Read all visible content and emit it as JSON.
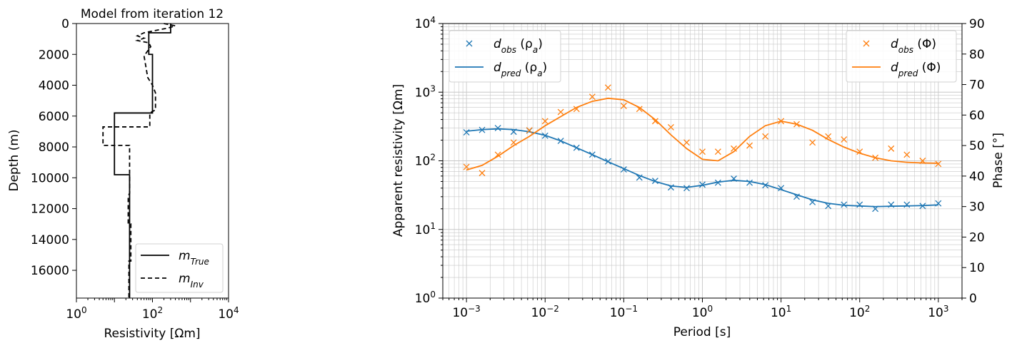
{
  "colors": {
    "phase": "#ff7f0e",
    "rho": "#1f77b4",
    "model": "#000000",
    "grid": "#c8c8c8"
  },
  "chart_data": [
    {
      "type": "line",
      "title": "Model from iteration 12",
      "xlabel": "Resistivity [Ωm]",
      "ylabel": "Depth (m)",
      "xscale": "log",
      "xlim": [
        1,
        10000
      ],
      "ylim": [
        17800,
        0
      ],
      "y_inverted": true,
      "xticks": [
        {
          "v": 1,
          "b": "10",
          "e": "0"
        },
        {
          "v": 100,
          "b": "10",
          "e": "2"
        },
        {
          "v": 10000,
          "b": "10",
          "e": "4"
        }
      ],
      "yticks": [
        "0",
        "2000",
        "4000",
        "6000",
        "8000",
        "10000",
        "12000",
        "14000",
        "16000"
      ],
      "legend_position": "lower-right",
      "series": [
        {
          "name": "m_True",
          "label_base": "m",
          "label_sub": "True",
          "style": "solid",
          "points": [
            [
              300,
              0
            ],
            [
              300,
              600
            ],
            [
              80,
              600
            ],
            [
              80,
              2000
            ],
            [
              100,
              2000
            ],
            [
              100,
              5800
            ],
            [
              10,
              5800
            ],
            [
              10,
              9800
            ],
            [
              25,
              9800
            ],
            [
              25,
              17800
            ]
          ]
        },
        {
          "name": "m_Inv",
          "label_base": "m",
          "label_sub": "Inv",
          "style": "dashed",
          "points": [
            [
              200,
              0
            ],
            [
              400,
              150
            ],
            [
              250,
              300
            ],
            [
              120,
              450
            ],
            [
              60,
              600
            ],
            [
              40,
              800
            ],
            [
              60,
              950
            ],
            [
              40,
              1100
            ],
            [
              80,
              1250
            ],
            [
              90,
              1500
            ],
            [
              60,
              2100
            ],
            [
              75,
              3500
            ],
            [
              100,
              4000
            ],
            [
              120,
              4500
            ],
            [
              120,
              5600
            ],
            [
              85,
              5800
            ],
            [
              85,
              6700
            ],
            [
              5,
              6700
            ],
            [
              5,
              7900
            ],
            [
              25,
              7900
            ],
            [
              25,
              11000
            ],
            [
              23,
              11200
            ],
            [
              23,
              13000
            ],
            [
              27,
              13000
            ],
            [
              27,
              15400
            ],
            [
              24,
              15400
            ],
            [
              24,
              17800
            ]
          ]
        }
      ]
    },
    {
      "type": "line",
      "xlabel": "Period [s]",
      "ylabel": "Apparent resistivity [Ωm]",
      "y2label": "Phase [°]",
      "xscale": "log",
      "yscale": "log",
      "xlim": [
        0.0005,
        2000
      ],
      "ylim": [
        1,
        10000
      ],
      "y2lim": [
        0,
        90
      ],
      "grid": true,
      "xticks": [
        {
          "v": 0.001,
          "b": "10",
          "e": "−3"
        },
        {
          "v": 0.01,
          "b": "10",
          "e": "−2"
        },
        {
          "v": 0.1,
          "b": "10",
          "e": "−1"
        },
        {
          "v": 1,
          "b": "10",
          "e": "0"
        },
        {
          "v": 10,
          "b": "10",
          "e": "1"
        },
        {
          "v": 100,
          "b": "10",
          "e": "2"
        },
        {
          "v": 1000,
          "b": "10",
          "e": "3"
        }
      ],
      "yticks": [
        {
          "v": 1,
          "b": "10",
          "e": "0"
        },
        {
          "v": 10,
          "b": "10",
          "e": "1"
        },
        {
          "v": 100,
          "b": "10",
          "e": "2"
        },
        {
          "v": 1000,
          "b": "10",
          "e": "3"
        },
        {
          "v": 10000,
          "b": "10",
          "e": "4"
        }
      ],
      "y2ticks": [
        "0",
        "10",
        "20",
        "30",
        "40",
        "50",
        "60",
        "70",
        "80",
        "90"
      ],
      "x": [
        0.001,
        0.00158,
        0.00251,
        0.00398,
        0.00631,
        0.01,
        0.0158,
        0.0251,
        0.0398,
        0.0631,
        0.1,
        0.158,
        0.251,
        0.398,
        0.631,
        1,
        1.58,
        2.51,
        3.98,
        6.31,
        10,
        15.8,
        25.1,
        39.8,
        63.1,
        100,
        158,
        251,
        398,
        631,
        1000
      ],
      "legend_left": {
        "position": "upper-left",
        "entries": [
          {
            "name": "d_obs (ρ_a)",
            "base": "d",
            "sub": "obs",
            "suffix": " (ρ",
            "suffix_sub": "a",
            "suffix_end": ")",
            "marker": "x"
          },
          {
            "name": "d_pred (ρ_a)",
            "base": "d",
            "sub": "pred",
            "suffix": " (ρ",
            "suffix_sub": "a",
            "suffix_end": ")",
            "marker": "line"
          }
        ]
      },
      "legend_right": {
        "position": "upper-right",
        "entries": [
          {
            "name": "d_obs (Φ)",
            "base": "d",
            "sub": "obs",
            "suffix": " (Φ)",
            "suffix_sub": "",
            "suffix_end": "",
            "marker": "x"
          },
          {
            "name": "d_pred (Φ)",
            "base": "d",
            "sub": "pred",
            "suffix": " (Φ)",
            "suffix_sub": "",
            "suffix_end": "",
            "marker": "line"
          }
        ]
      },
      "series": [
        {
          "name": "d_obs (ρ_a)",
          "axis": "left",
          "kind": "scatter",
          "color": "#1f77b4",
          "values": [
            260,
            282,
            300,
            265,
            275,
            232,
            195,
            155,
            123,
            98,
            75,
            57,
            51,
            41,
            40,
            45,
            48,
            55,
            48,
            44,
            40,
            30,
            25,
            22,
            23,
            23,
            20,
            23,
            23,
            22,
            24
          ]
        },
        {
          "name": "d_pred (ρ_a)",
          "axis": "left",
          "kind": "line",
          "color": "#1f77b4",
          "values": [
            270,
            285,
            292,
            285,
            265,
            235,
            195,
            155,
            123,
            97,
            77,
            61,
            50,
            43,
            41,
            44,
            49,
            52,
            50,
            45,
            38,
            32,
            27,
            24,
            22.5,
            22,
            21.5,
            21.8,
            22,
            22.3,
            22.8
          ]
        },
        {
          "name": "d_obs (Φ)",
          "axis": "right",
          "kind": "scatter",
          "color": "#ff7f0e",
          "values": [
            43,
            41,
            47,
            51,
            55,
            58,
            61,
            62,
            66,
            69,
            63,
            62,
            58,
            56,
            51,
            48,
            48,
            49,
            50,
            53,
            58,
            57,
            51,
            53,
            52,
            48,
            46,
            49,
            47,
            45,
            44
          ]
        },
        {
          "name": "d_pred (Φ)",
          "axis": "right",
          "kind": "line",
          "color": "#ff7f0e",
          "values": [
            42,
            43.5,
            46.5,
            50,
            53,
            56.5,
            59.5,
            62.5,
            64.5,
            65.5,
            65,
            62.5,
            58.5,
            53.5,
            49,
            45.5,
            45,
            48,
            53,
            56.5,
            58,
            57,
            55,
            52,
            49.5,
            47.5,
            46,
            45,
            44.5,
            44.3,
            44.2
          ]
        }
      ]
    }
  ]
}
